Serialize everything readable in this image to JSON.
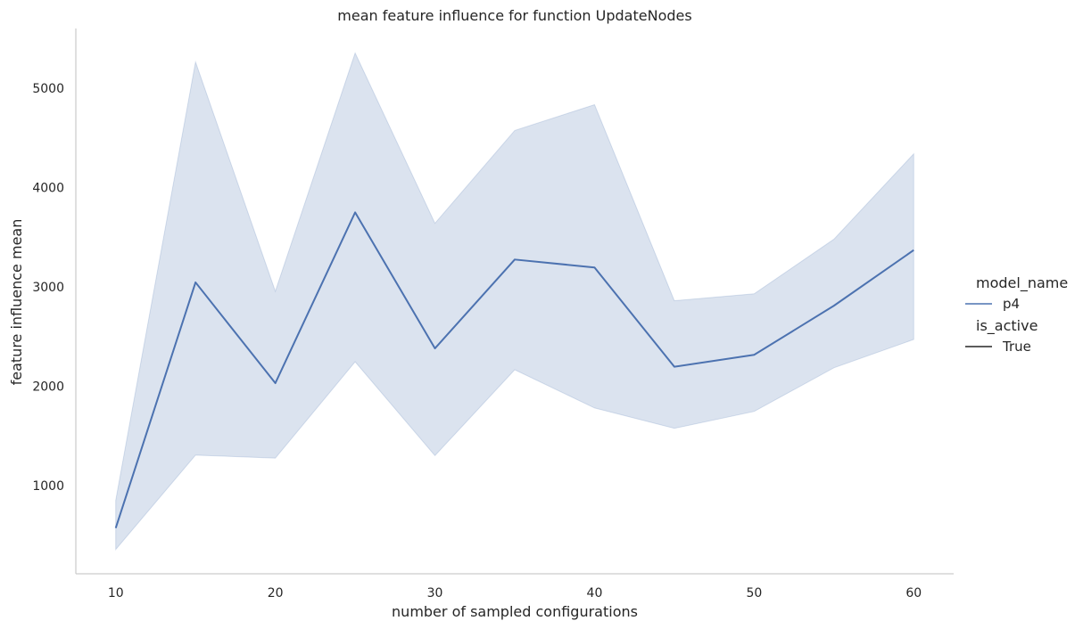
{
  "chart_data": {
    "type": "line",
    "title": "mean feature influence for function UpdateNodes",
    "xlabel": "number of sampled configurations",
    "ylabel": "feature influence mean",
    "x": [
      10,
      15,
      20,
      25,
      30,
      35,
      40,
      45,
      50,
      55,
      60
    ],
    "xticks": [
      10,
      20,
      30,
      40,
      50,
      60
    ],
    "yticks": [
      1000,
      2000,
      3000,
      4000,
      5000
    ],
    "xlim": [
      7.5,
      62.5
    ],
    "ylim": [
      110,
      5620
    ],
    "grid": false,
    "legend_position": "right",
    "series": [
      {
        "name": "p4",
        "color": "#4c72b0",
        "values": [
          570,
          3045,
          2030,
          3750,
          2380,
          3275,
          3195,
          2195,
          2315,
          2810,
          3370
        ],
        "ci_lower": [
          355,
          1305,
          1275,
          2245,
          1300,
          2165,
          1780,
          1575,
          1745,
          2185,
          2470
        ],
        "ci_upper": [
          850,
          5265,
          2955,
          5355,
          3640,
          4575,
          4835,
          2860,
          2930,
          3480,
          4340
        ]
      }
    ],
    "legend": {
      "hue_title": "model_name",
      "hue_entries": [
        {
          "label": "p4",
          "color": "#4c72b0"
        }
      ],
      "style_title": "is_active",
      "style_entries": [
        {
          "label": "True",
          "color": "#262626"
        }
      ]
    }
  }
}
